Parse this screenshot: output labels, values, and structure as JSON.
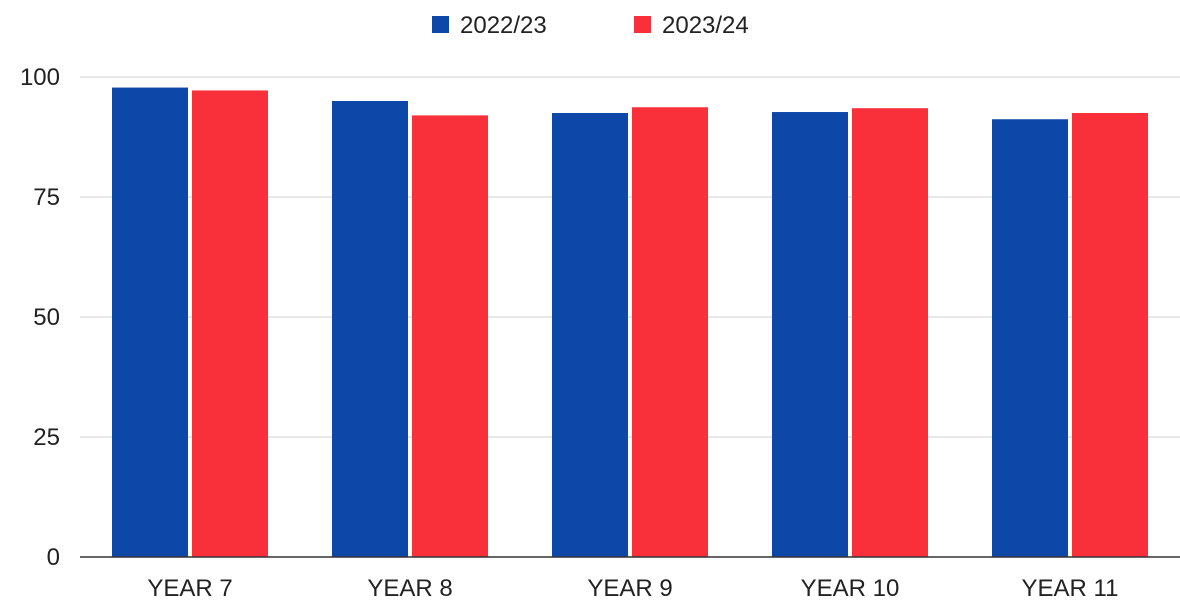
{
  "chart_data": {
    "type": "bar",
    "categories": [
      "YEAR 7",
      "YEAR 8",
      "YEAR 9",
      "YEAR 10",
      "YEAR 11"
    ],
    "series": [
      {
        "name": "2022/23",
        "color": "#0d47a8",
        "values": [
          97.8,
          95.0,
          92.5,
          92.7,
          91.2
        ]
      },
      {
        "name": "2023/24",
        "color": "#f9303a",
        "values": [
          97.2,
          92.0,
          93.7,
          93.5,
          92.5
        ]
      }
    ],
    "y_ticks": [
      "0",
      "25",
      "50",
      "75",
      "100"
    ],
    "ylim": [
      0,
      100
    ],
    "grid": true,
    "legend": "top-center",
    "title": "",
    "xlabel": "",
    "ylabel": ""
  }
}
